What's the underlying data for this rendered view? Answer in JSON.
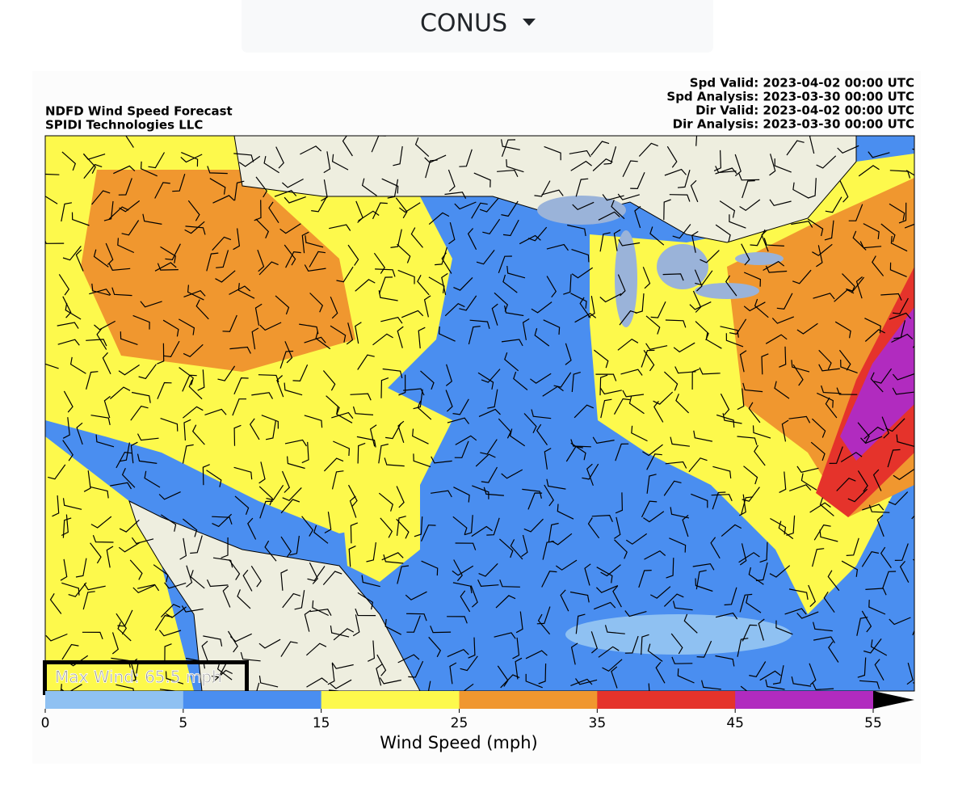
{
  "selector": {
    "label": "CONUS"
  },
  "map": {
    "title": [
      "NDFD Wind Speed Forecast",
      "SPIDI Technologies LLC"
    ],
    "times": [
      "Spd Valid: 2023-04-02 00:00 UTC",
      "Spd Analysis: 2023-03-30 00:00 UTC",
      "Dir Valid: 2023-04-02 00:00 UTC",
      "Dir Analysis: 2023-03-30 00:00 UTC"
    ],
    "annotation": "Max Wind: 65.5 mph",
    "colorbar": {
      "label": "Wind Speed (mph)",
      "ticks": [
        0,
        5,
        15,
        25,
        35,
        45,
        55
      ],
      "colors": [
        "#8fc1f2",
        "#4a8ef0",
        "#fdf94c",
        "#f0972f",
        "#e5332b",
        "#b12bbf"
      ],
      "extend": "max",
      "extend_color": "#000000"
    }
  }
}
